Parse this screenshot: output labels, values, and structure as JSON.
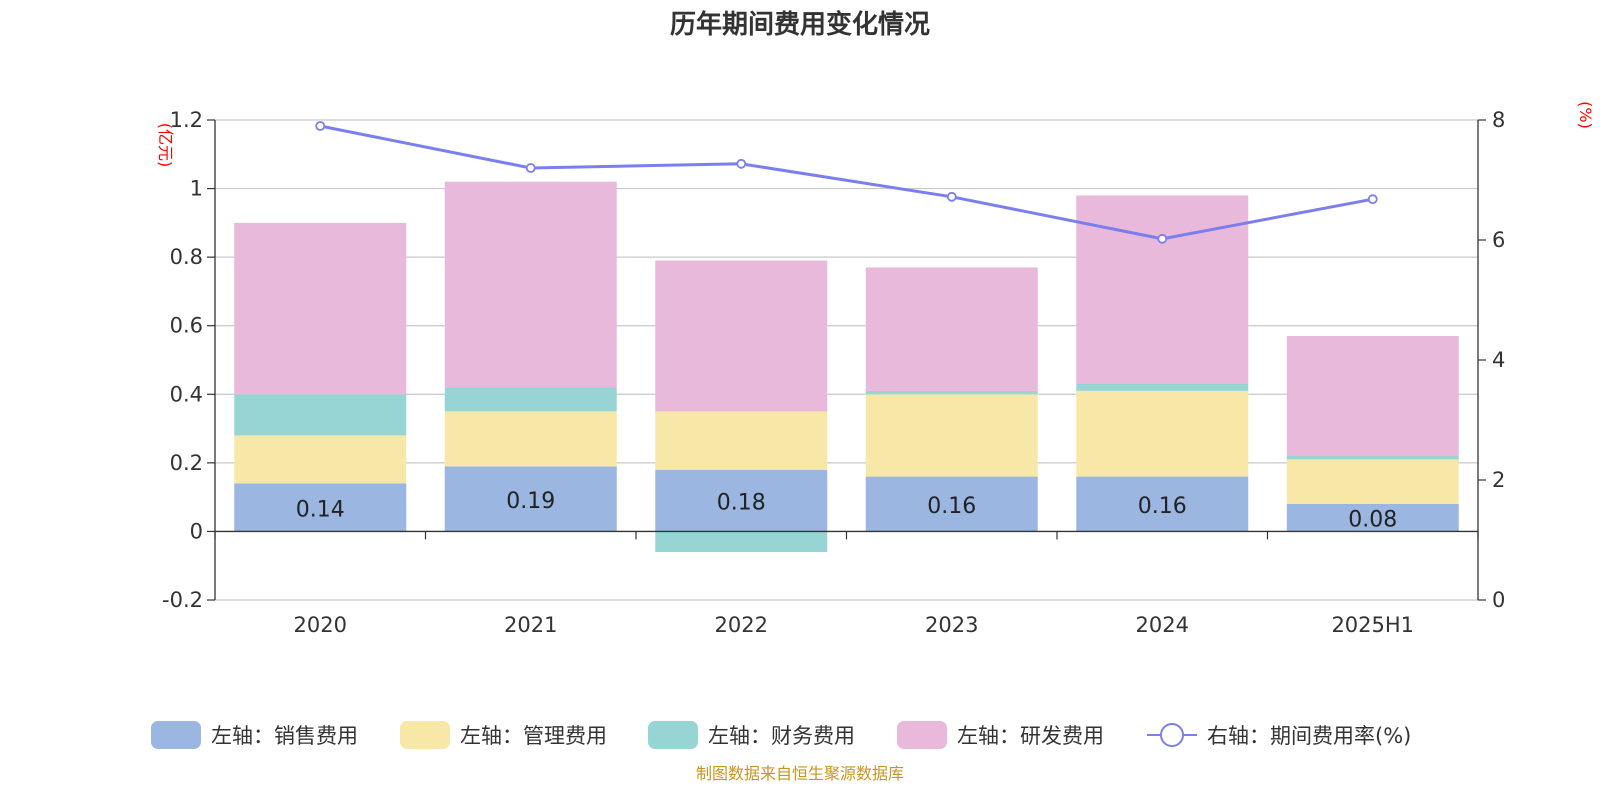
{
  "title": "历年期间费用变化情况",
  "source": "制图数据来自恒生聚源数据库",
  "colors": {
    "sales": "#9bb7e1",
    "admin": "#f8e8a8",
    "finance": "#97d5d4",
    "rd": "#e8b9da",
    "rate": "#7b7eee",
    "grid": "#c8c8c8",
    "unit": "#ff0000"
  },
  "chart_data": {
    "type": "bar",
    "stacked": true,
    "categories": [
      "2020",
      "2021",
      "2022",
      "2023",
      "2024",
      "2025H1"
    ],
    "y_left": {
      "unit_label": "(亿元)",
      "min": -0.2,
      "max": 1.2,
      "ticks": [
        "-0.2",
        "0",
        "0.2",
        "0.4",
        "0.6",
        "0.8",
        "1",
        "1.2"
      ]
    },
    "y_right": {
      "unit_label": "(%)",
      "min": 0,
      "max": 8,
      "ticks": [
        "0",
        "2",
        "4",
        "6",
        "8"
      ]
    },
    "grid": true,
    "legend_position": "bottom",
    "series": [
      {
        "key": "sales",
        "name": "左轴：销售费用",
        "axis": "left",
        "type": "bar",
        "values": [
          0.14,
          0.19,
          0.18,
          0.16,
          0.16,
          0.08
        ],
        "labels": [
          "0.14",
          "0.19",
          "0.18",
          "0.16",
          "0.16",
          "0.08"
        ]
      },
      {
        "key": "admin",
        "name": "左轴：管理费用",
        "axis": "left",
        "type": "bar",
        "values": [
          0.14,
          0.16,
          0.17,
          0.24,
          0.25,
          0.13
        ]
      },
      {
        "key": "finance",
        "name": "左轴：财务费用",
        "axis": "left",
        "type": "bar",
        "values": [
          0.12,
          0.07,
          -0.06,
          0.01,
          0.02,
          0.01
        ]
      },
      {
        "key": "rd",
        "name": "左轴：研发费用",
        "axis": "left",
        "type": "bar",
        "values": [
          0.5,
          0.6,
          0.44,
          0.36,
          0.55,
          0.35
        ]
      },
      {
        "key": "rate",
        "name": "右轴：期间费用率(%)",
        "axis": "right",
        "type": "line",
        "values": [
          7.9,
          7.2,
          7.27,
          6.72,
          6.02,
          6.68
        ]
      }
    ]
  }
}
